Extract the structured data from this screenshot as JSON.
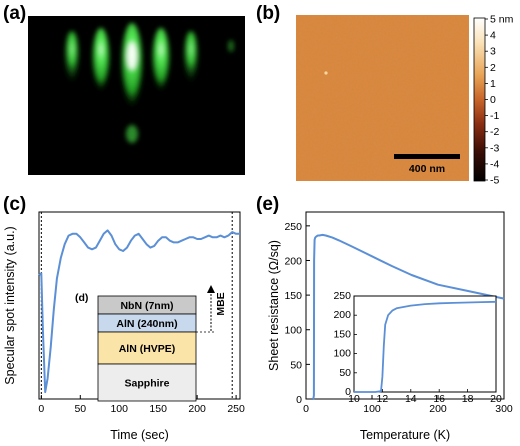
{
  "panels": {
    "a": {
      "label": "(a)"
    },
    "b": {
      "label": "(b)",
      "scalebar": "400 nm",
      "colorbar_ticks": [
        "5 nm",
        "4",
        "3",
        "2",
        "1",
        "0",
        "-1",
        "-2",
        "-3",
        "-4",
        "-5"
      ]
    },
    "c": {
      "label": "(c)"
    },
    "d": {
      "label": "(d)"
    },
    "e": {
      "label": "(e)"
    }
  },
  "colors": {
    "curve": "#5b8fd6",
    "stack_nbn": "#c9c9c9",
    "stack_aln_mbe": "#c8d9ee",
    "stack_aln_hvpe": "#fbe4a8",
    "stack_sapphire": "#ededed",
    "rheed_green": "#3fe23f",
    "afm_orange": "#d8823a"
  },
  "chart_data": [
    {
      "id": "c",
      "type": "line",
      "xlabel": "Time (sec)",
      "ylabel": "Specular spot intensity (a.u.)",
      "xlim": [
        -3,
        255
      ],
      "xticks": [
        "0",
        "50",
        "100",
        "150",
        "200",
        "250"
      ],
      "annotations": {
        "vline_x": [
          0,
          245
        ],
        "arrow_label": "MBE"
      },
      "layer_stack": [
        "NbN (7nm)",
        "AlN (240nm)",
        "AlN (HVPE)",
        "Sapphire"
      ],
      "series": [
        {
          "x": [
            -3,
            0,
            2,
            5,
            8,
            12,
            16,
            20,
            25,
            30,
            35,
            40,
            45,
            50,
            55,
            60,
            65,
            70,
            75,
            80,
            85,
            90,
            95,
            100,
            105,
            110,
            115,
            120,
            125,
            130,
            135,
            140,
            145,
            150,
            155,
            160,
            165,
            170,
            175,
            180,
            185,
            190,
            195,
            200,
            205,
            210,
            215,
            220,
            225,
            230,
            235,
            240,
            245,
            250,
            255
          ],
          "y": [
            0.72,
            0.73,
            0.4,
            0.04,
            0.12,
            0.3,
            0.52,
            0.7,
            0.82,
            0.9,
            0.95,
            0.96,
            0.96,
            0.94,
            0.91,
            0.88,
            0.87,
            0.88,
            0.92,
            0.96,
            0.98,
            0.95,
            0.9,
            0.87,
            0.86,
            0.88,
            0.92,
            0.95,
            0.96,
            0.93,
            0.9,
            0.88,
            0.89,
            0.92,
            0.94,
            0.94,
            0.92,
            0.91,
            0.91,
            0.92,
            0.93,
            0.94,
            0.94,
            0.93,
            0.93,
            0.94,
            0.95,
            0.94,
            0.94,
            0.95,
            0.94,
            0.95,
            0.97,
            0.96,
            0.96
          ]
        }
      ]
    },
    {
      "id": "e",
      "type": "line",
      "xlabel": "Temperature (K)",
      "ylabel": "Sheet resistance (Ω/sq)",
      "xlim": [
        0,
        300
      ],
      "ylim": [
        0,
        270
      ],
      "xticks": [
        0,
        100,
        200,
        300
      ],
      "yticks": [
        0,
        50,
        100,
        150,
        200,
        250
      ],
      "series": [
        {
          "x": [
            10,
            11,
            12,
            12.3,
            13,
            14,
            16,
            18,
            20,
            25,
            30,
            40,
            50,
            70,
            100,
            130,
            160,
            200,
            250,
            300
          ],
          "y": [
            0,
            0,
            5,
            200,
            230,
            233,
            235,
            236,
            236,
            237,
            236,
            233,
            229,
            220,
            206,
            192,
            179,
            165,
            155,
            145
          ]
        }
      ],
      "inset": {
        "xlim": [
          10,
          20
        ],
        "ylim": [
          0,
          250
        ],
        "xticks": [
          10,
          12,
          14,
          16,
          18,
          20
        ],
        "yticks": [
          0,
          50,
          100,
          150,
          200,
          250
        ],
        "series": [
          {
            "x": [
              10,
              11.5,
              11.9,
              12.0,
              12.1,
              12.2,
              12.4,
              12.7,
              13,
              14,
              15,
              16,
              17,
              18,
              19,
              20
            ],
            "y": [
              0,
              0,
              2,
              40,
              120,
              175,
              200,
              212,
              218,
              225,
              229,
              231,
              232,
              233,
              234,
              235
            ]
          }
        ]
      }
    }
  ]
}
